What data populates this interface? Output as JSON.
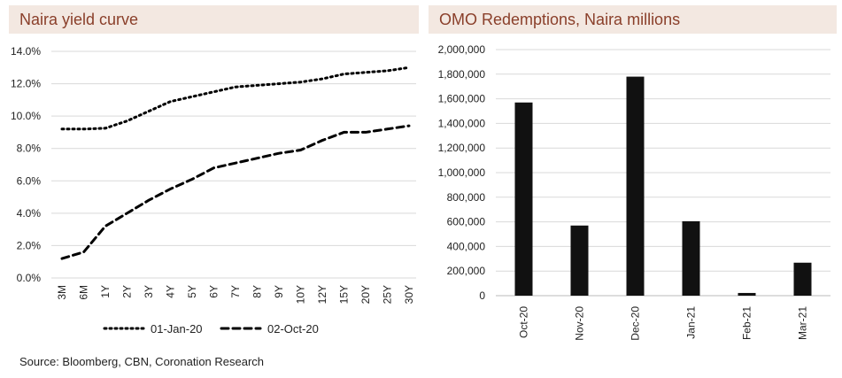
{
  "chart_data": [
    {
      "type": "line",
      "title": "Naira yield curve",
      "categories": [
        "3M",
        "6M",
        "1Y",
        "2Y",
        "3Y",
        "4Y",
        "5Y",
        "6Y",
        "7Y",
        "8Y",
        "9Y",
        "10Y",
        "12Y",
        "15Y",
        "20Y",
        "25Y",
        "30Y"
      ],
      "series": [
        {
          "name": "01-Jan-20",
          "style": "dotted",
          "values": [
            9.2,
            9.2,
            9.25,
            9.7,
            10.3,
            10.9,
            11.2,
            11.5,
            11.8,
            11.9,
            12.0,
            12.1,
            12.3,
            12.6,
            12.7,
            12.8,
            13.0
          ]
        },
        {
          "name": "02-Oct-20",
          "style": "dashed",
          "values": [
            1.2,
            1.6,
            3.2,
            4.0,
            4.8,
            5.5,
            6.1,
            6.8,
            7.1,
            7.4,
            7.7,
            7.9,
            8.5,
            9.0,
            9.0,
            9.2,
            9.4
          ]
        }
      ],
      "yticks": [
        "0.0%",
        "2.0%",
        "4.0%",
        "6.0%",
        "8.0%",
        "10.0%",
        "12.0%",
        "14.0%"
      ],
      "ylim": [
        0,
        14
      ],
      "grid": true,
      "legend": "bottom"
    },
    {
      "type": "bar",
      "title": "OMO Redemptions, Naira millions",
      "categories": [
        "Oct-20",
        "Nov-20",
        "Dec-20",
        "Jan-21",
        "Feb-21",
        "Mar-21"
      ],
      "values": [
        1570000,
        570000,
        1780000,
        605000,
        22000,
        268000
      ],
      "yticks": [
        "0",
        "200,000",
        "400,000",
        "600,000",
        "800,000",
        "1,000,000",
        "1,200,000",
        "1,400,000",
        "1,600,000",
        "1,800,000",
        "2,000,000"
      ],
      "ylim": [
        0,
        2000000
      ],
      "grid": true,
      "bar_color": "#111111"
    }
  ],
  "source": "Source: Bloomberg, CBN, Coronation Research"
}
